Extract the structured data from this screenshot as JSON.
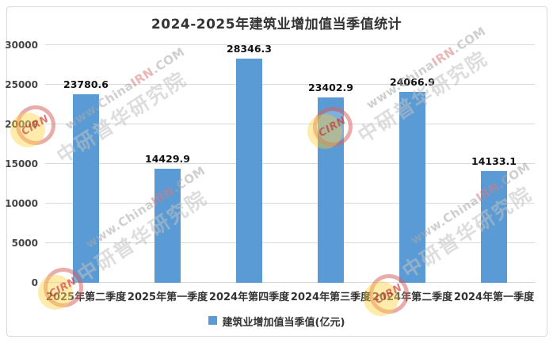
{
  "title": "2024-2025年建筑业增加值当季值统计",
  "chart_data": {
    "type": "bar",
    "title": "2024-2025年建筑业增加值当季值统计",
    "categories": [
      "2025年第二季度",
      "2025年第一季度",
      "2024年第四季度",
      "2024年第三季度",
      "2024年第二季度",
      "2024年第一季度"
    ],
    "values": [
      23780.6,
      14429.9,
      28346.3,
      23402.9,
      24066.9,
      14133.1
    ],
    "series_name": "建筑业增加值当季值(亿元)",
    "xlabel": "",
    "ylabel": "",
    "ylim": [
      0,
      30000
    ],
    "yticks": [
      0,
      5000,
      10000,
      15000,
      20000,
      25000,
      30000
    ],
    "grid": true,
    "legend_position": "bottom",
    "bar_color": "#5B9BD5"
  },
  "legend": {
    "label": "建筑业增加值当季值(亿元)"
  },
  "watermark": {
    "url_prefix": "www.China",
    "url_red": "IRN",
    "url_suffix": ".COM",
    "cn_text": "中研普华研究院",
    "logo_text": "CIRN"
  },
  "colors": {
    "bar": "#5B9BD5",
    "gridline": "#D9D9D9",
    "frame_border": "#D9D9D9",
    "title_text": "#333333",
    "axis_text": "#444444",
    "value_label": "#111111"
  }
}
